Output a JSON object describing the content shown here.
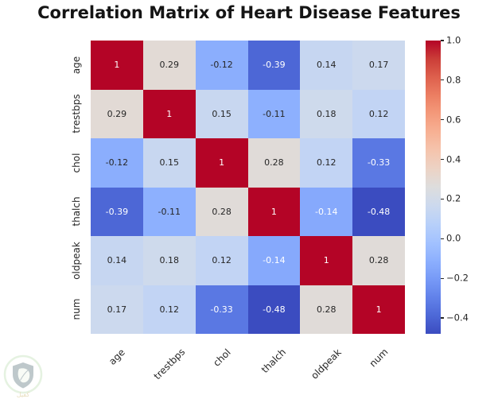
{
  "title": "Correlation Matrix of Heart Disease Features",
  "chart_data": {
    "type": "heatmap",
    "colormap": "coolwarm",
    "features": [
      "age",
      "trestbps",
      "chol",
      "thalch",
      "oldpeak",
      "num"
    ],
    "matrix": [
      [
        1.0,
        0.29,
        -0.12,
        -0.39,
        0.14,
        0.17
      ],
      [
        0.29,
        1.0,
        0.15,
        -0.11,
        0.18,
        0.12
      ],
      [
        -0.12,
        0.15,
        1.0,
        0.28,
        0.12,
        -0.33
      ],
      [
        -0.39,
        -0.11,
        0.28,
        1.0,
        -0.14,
        -0.48
      ],
      [
        0.14,
        0.18,
        0.12,
        -0.14,
        1.0,
        0.28
      ],
      [
        0.17,
        0.12,
        -0.33,
        -0.48,
        0.28,
        1.0
      ]
    ],
    "vmin": -0.48,
    "vmax": 1.0,
    "annotation_format": "2_significant_digits",
    "legend_position": "right",
    "colorbar_ticks": [
      {
        "value": 1.0,
        "label": "1.0"
      },
      {
        "value": 0.8,
        "label": "0.8"
      },
      {
        "value": 0.6,
        "label": "0.6"
      },
      {
        "value": 0.4,
        "label": "0.4"
      },
      {
        "value": 0.2,
        "label": "0.2"
      },
      {
        "value": 0.0,
        "label": "0.0"
      },
      {
        "value": -0.2,
        "label": "−0.2"
      },
      {
        "value": -0.4,
        "label": "−0.4"
      }
    ]
  },
  "watermark": {
    "text": "كفيل"
  }
}
